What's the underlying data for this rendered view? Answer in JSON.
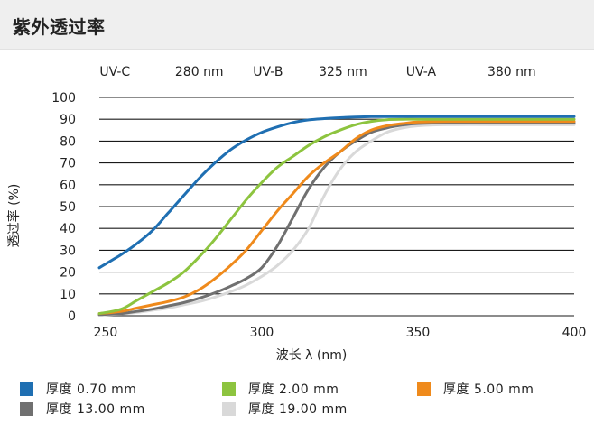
{
  "page": {
    "title": "紫外透过率"
  },
  "chart_data": {
    "type": "line",
    "ylabel": "透过率 (%)",
    "xlabel": "波长 λ (nm)",
    "xlim": [
      248,
      400
    ],
    "ylim": [
      0,
      100
    ],
    "x_ticks": [
      250,
      300,
      350,
      400
    ],
    "y_ticks": [
      0,
      10,
      20,
      30,
      40,
      50,
      60,
      70,
      80,
      90,
      100
    ],
    "grid": "horizontal",
    "band_labels": [
      {
        "text": "UV-C",
        "x": 253
      },
      {
        "text": "280 nm",
        "x": 280
      },
      {
        "text": "UV-B",
        "x": 302
      },
      {
        "text": "325 nm",
        "x": 326
      },
      {
        "text": "UV-A",
        "x": 351
      },
      {
        "text": "380 nm",
        "x": 380
      }
    ],
    "legend_position": "bottom",
    "series": [
      {
        "name": "厚度 0.70 mm",
        "color": "#1f6fb2",
        "x": [
          248,
          255,
          260,
          265,
          270,
          275,
          280,
          285,
          290,
          295,
          300,
          305,
          310,
          315,
          320,
          325,
          330,
          335,
          340,
          350,
          360,
          380,
          400
        ],
        "y": [
          22,
          28,
          33,
          39,
          47,
          55,
          63,
          70,
          76,
          80.5,
          84,
          86.5,
          88.5,
          89.7,
          90.3,
          90.7,
          91,
          91.2,
          91.2,
          91.2,
          91.2,
          91.2,
          91.2
        ]
      },
      {
        "name": "厚度 2.00 mm",
        "color": "#8dc43f",
        "x": [
          248,
          255,
          260,
          265,
          270,
          275,
          280,
          285,
          290,
          295,
          300,
          305,
          310,
          315,
          320,
          325,
          330,
          335,
          340,
          345,
          350,
          360,
          380,
          400
        ],
        "y": [
          1,
          3,
          7,
          11,
          15,
          20,
          27,
          35,
          44,
          53,
          61,
          68,
          73,
          78,
          82,
          85,
          87.5,
          89,
          89.8,
          90,
          90,
          90,
          90,
          90
        ]
      },
      {
        "name": "厚度 5.00 mm",
        "color": "#ef8a1c",
        "x": [
          248,
          255,
          260,
          265,
          270,
          275,
          280,
          285,
          290,
          295,
          300,
          305,
          310,
          315,
          320,
          325,
          330,
          335,
          340,
          345,
          350,
          360,
          380,
          400
        ],
        "y": [
          1,
          2,
          3.5,
          5,
          6.5,
          8.5,
          12,
          17,
          23,
          30,
          39,
          48,
          56,
          64,
          70,
          75,
          81,
          85,
          87,
          88,
          88.7,
          89,
          89,
          89
        ]
      },
      {
        "name": "厚度 13.00 mm",
        "color": "#707070",
        "x": [
          248,
          255,
          260,
          265,
          270,
          275,
          280,
          285,
          290,
          295,
          300,
          305,
          310,
          315,
          320,
          325,
          330,
          335,
          340,
          345,
          350,
          360,
          380,
          400
        ],
        "y": [
          0.5,
          1,
          2,
          3,
          4.5,
          6,
          8,
          10.5,
          13.5,
          17,
          22,
          32,
          45,
          58,
          68,
          75,
          80,
          84,
          86,
          87.3,
          88,
          88.3,
          88.3,
          88.3
        ]
      },
      {
        "name": "厚度 19.00 mm",
        "color": "#d9d9d9",
        "x": [
          248,
          255,
          260,
          265,
          270,
          275,
          280,
          285,
          290,
          295,
          300,
          305,
          310,
          315,
          320,
          325,
          330,
          335,
          340,
          345,
          350,
          360,
          380,
          400
        ],
        "y": [
          0.3,
          0.8,
          1.5,
          2.5,
          3.5,
          5,
          6.5,
          8.5,
          11,
          14,
          18,
          23,
          30,
          40,
          55,
          67,
          75,
          80,
          84,
          86,
          87,
          87.5,
          87.5,
          87.5
        ]
      }
    ]
  }
}
